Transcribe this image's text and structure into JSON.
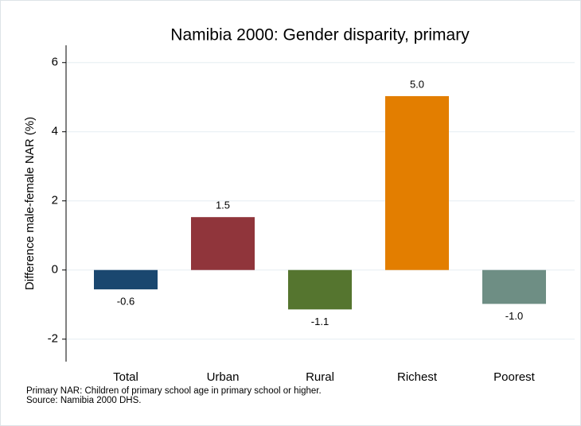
{
  "chart_data": {
    "type": "bar",
    "title": "Namibia 2000: Gender disparity, primary",
    "y_label": "Difference male-female NAR (%)",
    "categories": [
      "Total",
      "Urban",
      "Rural",
      "Richest",
      "Poorest"
    ],
    "values": [
      -0.56,
      1.53,
      -1.14,
      5.03,
      -0.98
    ],
    "value_labels": [
      "-0.6",
      "1.5",
      "-1.1",
      "5.0",
      "-1.0"
    ],
    "colors": [
      "#1a476f",
      "#90353b",
      "#55752f",
      "#e37e00",
      "#6e8e84"
    ],
    "ylim": [
      -2.65,
      6.5
    ],
    "yticks": [
      -2,
      0,
      2,
      4,
      6
    ],
    "grid": true,
    "notes": [
      "Primary NAR: Children of primary school age in primary school or higher.",
      "Source: Namibia 2000 DHS."
    ]
  }
}
